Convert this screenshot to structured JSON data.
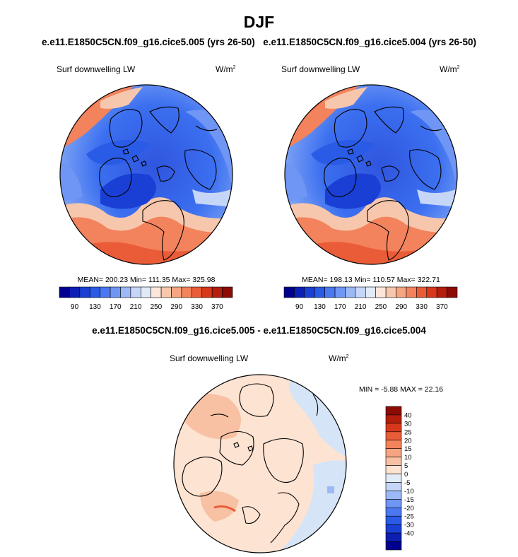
{
  "figure": {
    "season_title": "DJF",
    "case_a_title": "e.e11.E1850C5CN.f09_g16.cice5.005 (yrs 26-50)",
    "case_b_title": "e.e11.E1850C5CN.f09_g16.cice5.004 (yrs 26-50)",
    "diff_title": "e.e11.E1850C5CN.f09_g16.cice5.005 - e.e11.E1850C5CN.f09_g16.cice5.004"
  },
  "panels": [
    {
      "variable": "Surf downwelling LW",
      "units_base": "W/m",
      "units_exp": "2",
      "stats": "MEAN= 200.23  Min= 111.35  Max= 325.98"
    },
    {
      "variable": "Surf downwelling LW",
      "units_base": "W/m",
      "units_exp": "2",
      "stats": "MEAN= 198.13  Min= 110.57  Max= 322.71"
    }
  ],
  "diff_panel": {
    "variable": "Surf downwelling LW",
    "units_base": "W/m",
    "units_exp": "2",
    "stats": "MIN =  -5.88 MAX =  22.16"
  },
  "abs_colorbar": {
    "colors": [
      "#00008f",
      "#0c1fb3",
      "#1a3fd4",
      "#2a5be6",
      "#4a78f0",
      "#6f96f4",
      "#9cb8f7",
      "#c6d6f8",
      "#e2e9f7",
      "#fbe6d9",
      "#f7c7ad",
      "#f5a582",
      "#f2835c",
      "#ea5c38",
      "#d7381c",
      "#b51d0c",
      "#8c0c05"
    ],
    "ticks": [
      "90",
      "130",
      "170",
      "210",
      "250",
      "290",
      "330",
      "370"
    ]
  },
  "diff_colorbar": {
    "colors": [
      "#00008f",
      "#0c1fb3",
      "#1a3fd4",
      "#2a5be6",
      "#4a78f0",
      "#6f96f4",
      "#9cb8f7",
      "#c6d6f8",
      "#e2ecf8",
      "#fde3d2",
      "#f8c1a3",
      "#f5a582",
      "#f2835c",
      "#ea5c38",
      "#d7381c",
      "#b51d0c",
      "#8c0c05"
    ],
    "ticks": [
      "40",
      "30",
      "25",
      "20",
      "15",
      "10",
      "5",
      "0",
      "-5",
      "-10",
      "-15",
      "-20",
      "-25",
      "-30",
      "-40"
    ]
  },
  "colors": {
    "polar_blue_deep": "#1a3fd4",
    "polar_blue": "#3b6ff0",
    "polar_blue_light": "#8fb0f5",
    "warm_orange": "#f2835c",
    "warm_red": "#ea5c38",
    "diff_bg": "#fde3d2",
    "diff_blue": "#d6e4f8"
  }
}
